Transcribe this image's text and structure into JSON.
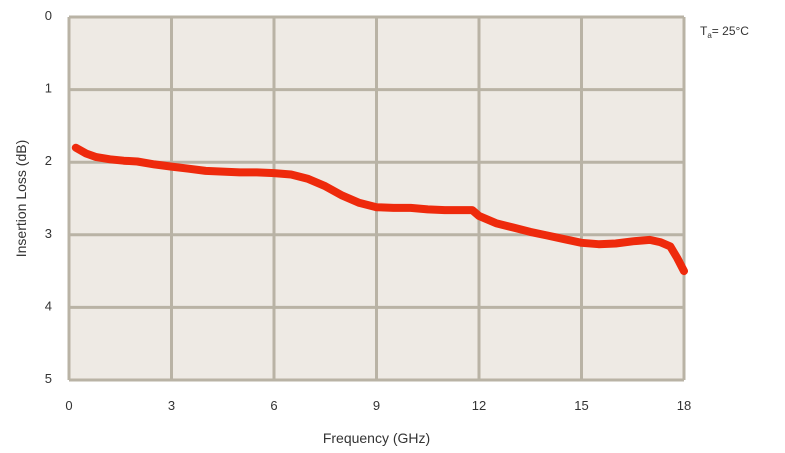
{
  "chart_data": {
    "type": "line",
    "xlabel": "Frequency (GHz)",
    "ylabel": "Insertion Loss (dB)",
    "xlim": [
      0,
      18
    ],
    "ylim": [
      0,
      5
    ],
    "y_inverted": true,
    "grid": true,
    "x_ticks": [
      "0",
      "3",
      "6",
      "9",
      "12",
      "15",
      "18"
    ],
    "y_ticks": [
      "0",
      "1",
      "2",
      "3",
      "4",
      "5"
    ],
    "annotation": {
      "main": "T",
      "subscript": "a",
      "value": "= 25°C"
    },
    "colors": {
      "plot_background": "#eeeae4",
      "grid": "#b9b3a5",
      "series": "#ee2a0c"
    },
    "series": [
      {
        "x": [
          0.2,
          0.5,
          0.8,
          1.2,
          1.6,
          2.0,
          2.5,
          3.0,
          3.5,
          4.0,
          4.5,
          5.0,
          5.5,
          6.0,
          6.5,
          7.0,
          7.5,
          8.0,
          8.5,
          9.0,
          9.5,
          10.0,
          10.5,
          11.0,
          11.5,
          11.8,
          12.0,
          12.5,
          13.0,
          13.5,
          14.0,
          14.5,
          15.0,
          15.5,
          16.0,
          16.5,
          17.0,
          17.3,
          17.6,
          17.8,
          18.0
        ],
        "y": [
          1.8,
          1.88,
          1.93,
          1.96,
          1.98,
          1.99,
          2.03,
          2.06,
          2.09,
          2.12,
          2.13,
          2.14,
          2.14,
          2.15,
          2.17,
          2.23,
          2.33,
          2.46,
          2.56,
          2.62,
          2.63,
          2.63,
          2.65,
          2.66,
          2.66,
          2.66,
          2.74,
          2.84,
          2.9,
          2.96,
          3.01,
          3.06,
          3.11,
          3.13,
          3.12,
          3.09,
          3.07,
          3.1,
          3.16,
          3.32,
          3.5
        ]
      }
    ]
  }
}
